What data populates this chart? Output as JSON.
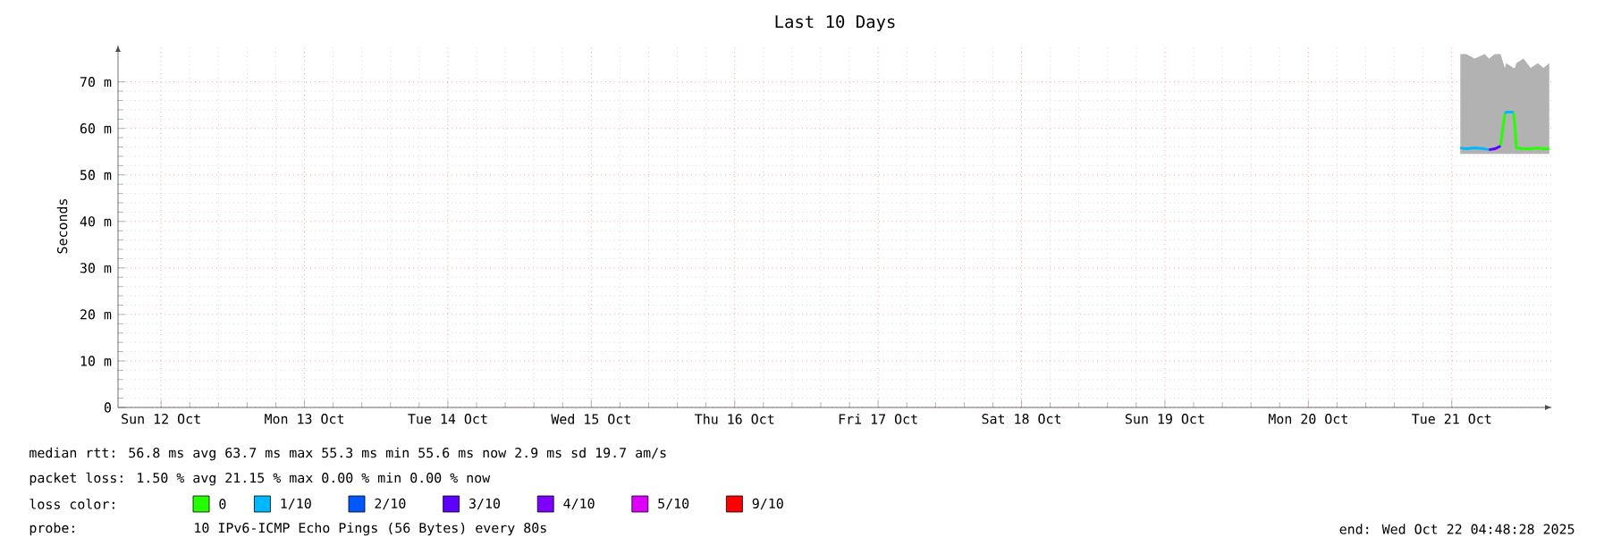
{
  "chart_data": {
    "type": "line",
    "title": "Last 10 Days",
    "ylabel": "Seconds",
    "x": [
      "2025-10-21T13:26",
      "2025-10-21T14:24",
      "2025-10-21T15:50",
      "2025-10-21T17:31",
      "2025-10-21T18:14",
      "2025-10-21T19:12",
      "2025-10-21T20:10",
      "2025-10-21T20:53",
      "2025-10-21T21:07",
      "2025-10-21T22:19",
      "2025-10-21T22:34",
      "2025-10-21T22:48",
      "2025-10-22T00:00",
      "2025-10-22T01:12",
      "2025-10-22T02:24",
      "2025-10-22T03:22",
      "2025-10-22T04:19"
    ],
    "series": [
      {
        "name": "0",
        "color": "#26ff00",
        "values": [
          null,
          null,
          null,
          null,
          null,
          null,
          56.2,
          63.2,
          null,
          63.5,
          60.5,
          55.8,
          55.6,
          55.6,
          55.8,
          55.6,
          55.6
        ],
        "lower": [
          54.5,
          54.5,
          54.5,
          54.5,
          54.5,
          54.5,
          54.5,
          54.5,
          54.5,
          54.5,
          54.5,
          54.5,
          54.5,
          54.5,
          54.5,
          54.5,
          54.5
        ],
        "upper": [
          76,
          76,
          75,
          76,
          75,
          76,
          76,
          73,
          74,
          73,
          73,
          74,
          75,
          73,
          74,
          73,
          74
        ]
      },
      {
        "name": "1/10",
        "color": "#00b8ff",
        "values": [
          55.8,
          55.6,
          55.8,
          55.6,
          55.4,
          null,
          null,
          63.2,
          63.5,
          63.5,
          null,
          null,
          null,
          null,
          null,
          null,
          null
        ]
      },
      {
        "name": "2/10",
        "color": "#0059ff",
        "values": [
          null,
          null,
          null,
          null,
          null,
          null,
          null,
          null,
          null,
          null,
          null,
          null,
          null,
          null,
          null,
          null,
          null
        ]
      },
      {
        "name": "3/10",
        "color": "#5e00ff",
        "values": [
          null,
          null,
          null,
          null,
          55.4,
          55.6,
          56.2,
          null,
          null,
          null,
          null,
          null,
          null,
          null,
          null,
          null,
          null
        ]
      },
      {
        "name": "4/10",
        "color": "#7e00ff",
        "values": [
          null,
          null,
          null,
          null,
          null,
          null,
          null,
          null,
          null,
          null,
          null,
          null,
          null,
          null,
          null,
          null,
          null
        ]
      },
      {
        "name": "5/10",
        "color": "#dd00ff",
        "values": [
          null,
          null,
          null,
          null,
          null,
          null,
          null,
          null,
          null,
          null,
          null,
          null,
          null,
          null,
          null,
          null,
          null
        ]
      },
      {
        "name": "9/10",
        "color": "#ff0000",
        "values": [
          null,
          null,
          null,
          null,
          null,
          null,
          null,
          null,
          null,
          null,
          null,
          null,
          null,
          null,
          null,
          null,
          null
        ]
      }
    ],
    "xlim": [
      "2025-10-12T04:48",
      "2025-10-22T04:48"
    ],
    "xticks": [
      {
        "value": "2025-10-12T12:00",
        "label": "Sun 12 Oct"
      },
      {
        "value": "2025-10-13T12:00",
        "label": "Mon 13 Oct"
      },
      {
        "value": "2025-10-14T12:00",
        "label": "Tue 14 Oct"
      },
      {
        "value": "2025-10-15T12:00",
        "label": "Wed 15 Oct"
      },
      {
        "value": "2025-10-16T12:00",
        "label": "Thu 16 Oct"
      },
      {
        "value": "2025-10-17T12:00",
        "label": "Fri 17 Oct"
      },
      {
        "value": "2025-10-18T12:00",
        "label": "Sat 18 Oct"
      },
      {
        "value": "2025-10-19T12:00",
        "label": "Sun 19 Oct"
      },
      {
        "value": "2025-10-20T12:00",
        "label": "Mon 20 Oct"
      },
      {
        "value": "2025-10-21T12:00",
        "label": "Tue 21 Oct"
      }
    ],
    "ylim": [
      0,
      78
    ],
    "yticks": [
      0,
      {
        "value": 10,
        "label": "10 m"
      },
      {
        "value": 20,
        "label": "20 m"
      },
      {
        "value": 30,
        "label": "30 m"
      },
      {
        "value": 40,
        "label": "40 m"
      },
      {
        "value": 50,
        "label": "50 m"
      },
      {
        "value": 60,
        "label": "60 m"
      },
      {
        "value": 70,
        "label": "70 m"
      }
    ],
    "grid": true,
    "legend": "bottom",
    "marker": "none",
    "line_style": "solid",
    "annotations": [
      "median rtt:  56.8 ms avg  63.7 ms max  55.3 ms min  55.6 ms now  2.9 ms sd  19.7 am/s",
      "packet loss: 1.50 % avg  21.15 % max  0.00 % min  0.00 % now",
      "loss color:",
      "probe:",
      "10 IPv6-ICMP Echo Pings (56 Bytes) every 80s",
      "end: Wed Oct 22 04:48:28 2025"
    ]
  }
}
